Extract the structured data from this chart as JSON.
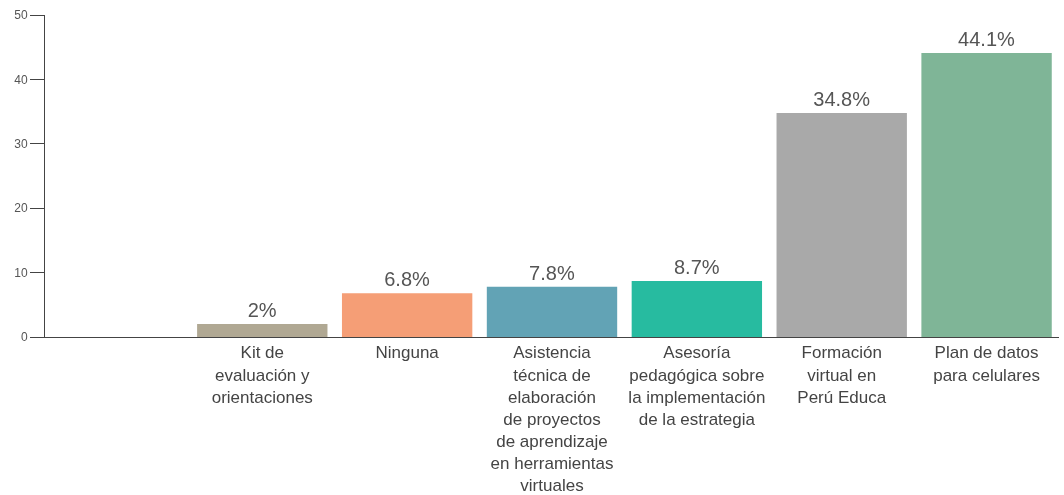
{
  "chart_data": {
    "type": "bar",
    "categories": [
      null,
      "Kit de\nevaluación y\norientaciones",
      "Ninguna",
      "Asistencia\ntécnica de\nelaboración\nde proyectos\nde aprendizaje\nen herramientas\nvirtuales",
      "Asesoría\npedagógica sobre\nla implementación\nde la estrategia",
      "Formación\nvirtual en\nPerú Educa",
      "Plan de datos\npara celulares"
    ],
    "values": [
      null,
      2,
      6.8,
      7.8,
      8.7,
      34.8,
      44.1
    ],
    "colors": [
      "#b0a893",
      "#b0a893",
      "#f59e76",
      "#62a3b5",
      "#27bba0",
      "#a9a9a9",
      "#7fb597"
    ],
    "value_labels": [
      null,
      "2%",
      "6.8%",
      "7.8%",
      "8.7%",
      "34.8%",
      "44.1%"
    ],
    "ylim": [
      0,
      50
    ],
    "yticks": [
      0,
      10,
      20,
      30,
      40,
      50
    ]
  }
}
